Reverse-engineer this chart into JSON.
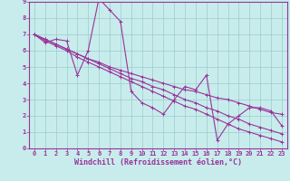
{
  "xlabel": "Windchill (Refroidissement éolien,°C)",
  "bg_color": "#c8ecec",
  "line_color": "#993399",
  "grid_color": "#99cccc",
  "xlim": [
    -0.5,
    23.5
  ],
  "ylim": [
    0,
    9
  ],
  "xticks": [
    0,
    1,
    2,
    3,
    4,
    5,
    6,
    7,
    8,
    9,
    10,
    11,
    12,
    13,
    14,
    15,
    16,
    17,
    18,
    19,
    20,
    21,
    22,
    23
  ],
  "yticks": [
    0,
    1,
    2,
    3,
    4,
    5,
    6,
    7,
    8,
    9
  ],
  "series": [
    [
      7.0,
      6.5,
      6.7,
      6.6,
      4.5,
      6.0,
      9.2,
      8.5,
      7.8,
      3.5,
      2.8,
      2.5,
      2.1,
      3.0,
      3.8,
      3.6,
      4.5,
      0.5,
      1.5,
      2.0,
      2.5,
      2.5,
      2.3,
      1.4
    ],
    [
      7.0,
      6.7,
      6.4,
      6.1,
      5.8,
      5.5,
      5.3,
      5.0,
      4.8,
      4.6,
      4.4,
      4.2,
      4.0,
      3.8,
      3.6,
      3.5,
      3.3,
      3.1,
      3.0,
      2.8,
      2.6,
      2.4,
      2.2,
      2.1
    ],
    [
      7.0,
      6.7,
      6.4,
      6.1,
      5.8,
      5.5,
      5.2,
      4.9,
      4.6,
      4.3,
      4.1,
      3.8,
      3.6,
      3.3,
      3.0,
      2.8,
      2.5,
      2.3,
      2.0,
      1.8,
      1.5,
      1.3,
      1.1,
      0.9
    ],
    [
      7.0,
      6.6,
      6.3,
      6.0,
      5.6,
      5.3,
      5.0,
      4.7,
      4.4,
      4.1,
      3.8,
      3.5,
      3.2,
      2.9,
      2.6,
      2.4,
      2.1,
      1.8,
      1.5,
      1.2,
      1.0,
      0.8,
      0.6,
      0.4
    ]
  ],
  "marker": "+",
  "markersize": 3,
  "linewidth": 0.8,
  "fontsize_ticks": 5,
  "fontsize_xlabel": 6
}
